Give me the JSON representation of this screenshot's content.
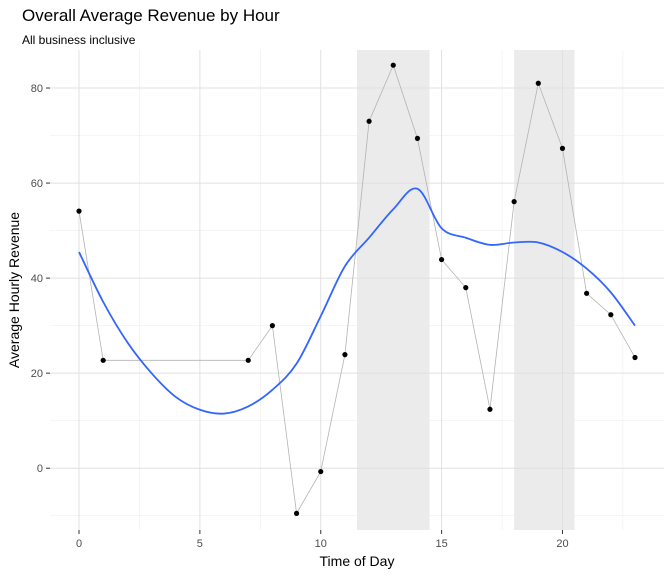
{
  "chart_data": {
    "type": "line",
    "title": "Overall Average Revenue by Hour",
    "subtitle": "All business inclusive",
    "xlabel": "Time of Day",
    "ylabel": "Average Hourly Revenue",
    "xlim": [
      -1.2,
      24.2
    ],
    "ylim": [
      -13,
      88
    ],
    "xticks": [
      0,
      5,
      10,
      15,
      20
    ],
    "yticks": [
      0,
      20,
      40,
      60,
      80
    ],
    "grid": true,
    "shaded_ranges": [
      [
        11.5,
        14.5
      ],
      [
        18,
        20.5
      ]
    ],
    "shade_color": "#ebebeb",
    "series": [
      {
        "style": "points-connected",
        "color": "#000000",
        "line_color": "#b3b3b3",
        "x": [
          0,
          1,
          7,
          8,
          9,
          10,
          11,
          12,
          13,
          14,
          15,
          16,
          17,
          18,
          19,
          20,
          21,
          22,
          23
        ],
        "y": [
          54.1,
          22.7,
          22.7,
          30.0,
          -9.5,
          -0.7,
          23.9,
          73.0,
          84.8,
          69.4,
          43.9,
          38.0,
          12.4,
          56.1,
          81.0,
          67.3,
          36.8,
          32.3,
          23.3
        ]
      },
      {
        "style": "smooth",
        "color": "#3366ff",
        "x": [
          0,
          1,
          2,
          3,
          4,
          5,
          6,
          7,
          8,
          9,
          10,
          11,
          12,
          13,
          14,
          15,
          16,
          17,
          18,
          19,
          20,
          21,
          22,
          23
        ],
        "y": [
          45.5,
          35.0,
          26.5,
          20.0,
          15.0,
          12.3,
          11.5,
          13.0,
          16.5,
          22.0,
          32.0,
          42.5,
          48.5,
          54.5,
          58.8,
          50.5,
          48.5,
          47.0,
          47.5,
          47.5,
          45.5,
          42.0,
          37.0,
          30.0
        ]
      }
    ]
  }
}
